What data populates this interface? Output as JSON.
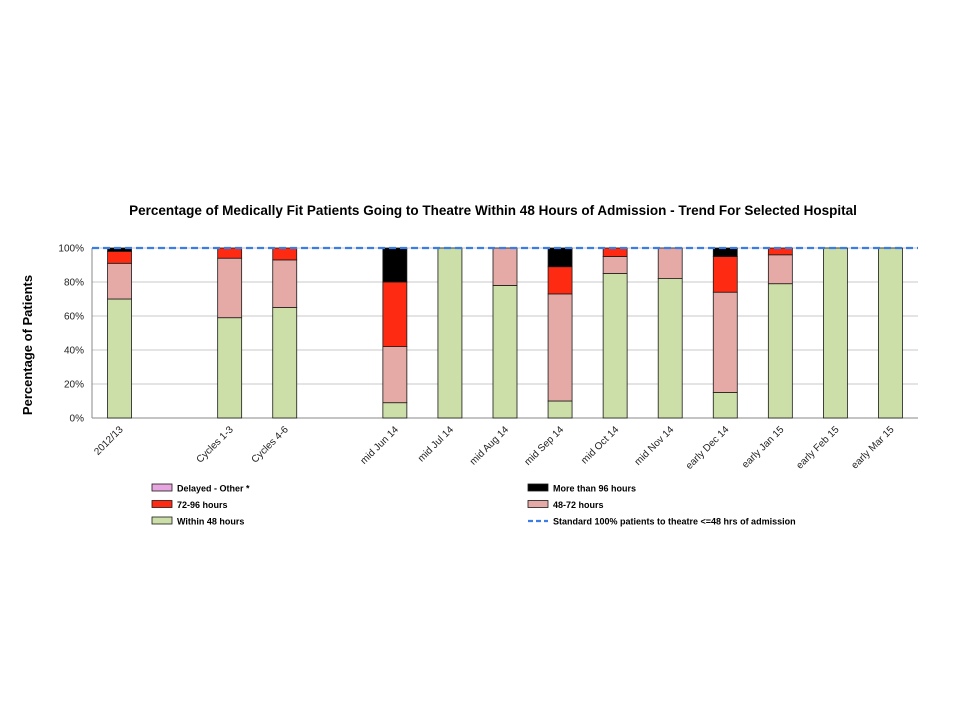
{
  "chart_data": {
    "type": "bar",
    "stacked": true,
    "title": "Percentage of Medically Fit Patients Going to Theatre Within 48 Hours of Admission - Trend For Selected Hospital",
    "xlabel": "",
    "ylabel": "Percentage of Patients",
    "ylim": [
      0,
      100
    ],
    "yticks": [
      "0%",
      "20%",
      "40%",
      "60%",
      "80%",
      "100%"
    ],
    "grid": true,
    "legend_position": "bottom",
    "categories": [
      "2012/13",
      "",
      "Cycles 1-3",
      "Cycles 4-6",
      "",
      "mid Jun 14",
      "mid Jul 14",
      "mid Aug 14",
      "mid Sep 14",
      "mid Oct 14",
      "mid Nov 14",
      "early Dec 14",
      "early Jan 15",
      "early Feb 15",
      "early Mar 15"
    ],
    "series": [
      {
        "name": "Within 48 hours",
        "color": "#cddfa8",
        "values": [
          70,
          null,
          59,
          65,
          null,
          9,
          100,
          78,
          10,
          85,
          82,
          15,
          79,
          100,
          100
        ]
      },
      {
        "name": "48-72 hours",
        "color": "#e6aaa6",
        "values": [
          21,
          null,
          35,
          28,
          null,
          33,
          0,
          22,
          63,
          10,
          18,
          59,
          17,
          0,
          0
        ]
      },
      {
        "name": "72-96 hours",
        "color": "#ff2a12",
        "values": [
          7,
          null,
          6,
          7,
          null,
          38,
          0,
          0,
          16,
          5,
          0,
          21,
          4,
          0,
          0
        ]
      },
      {
        "name": "More than 96 hours",
        "color": "#000000",
        "values": [
          2,
          null,
          0,
          0,
          null,
          20,
          0,
          0,
          11,
          0,
          0,
          5,
          0,
          0,
          0
        ]
      },
      {
        "name": "Delayed - Other *",
        "color": "#e8a6e0",
        "values": [
          0,
          null,
          0,
          0,
          null,
          0,
          0,
          0,
          0,
          0,
          0,
          0,
          0,
          0,
          0
        ]
      }
    ],
    "reference_line": {
      "name": "Standard 100% patients to theatre <=48 hrs of admission",
      "value": 100,
      "color": "#3a7de6"
    }
  },
  "legend": {
    "left": [
      {
        "label": "Delayed - Other *",
        "color": "#e8a6e0",
        "kind": "box"
      },
      {
        "label": "72-96 hours",
        "color": "#ff2a12",
        "kind": "box"
      },
      {
        "label": "Within 48 hours",
        "color": "#cddfa8",
        "kind": "box"
      }
    ],
    "right": [
      {
        "label": "More than 96 hours",
        "color": "#000000",
        "kind": "box"
      },
      {
        "label": "48-72 hours",
        "color": "#e6aaa6",
        "kind": "box"
      },
      {
        "label": "Standard 100% patients to theatre <=48 hrs of admission",
        "color": "#3a7de6",
        "kind": "dash"
      }
    ]
  }
}
